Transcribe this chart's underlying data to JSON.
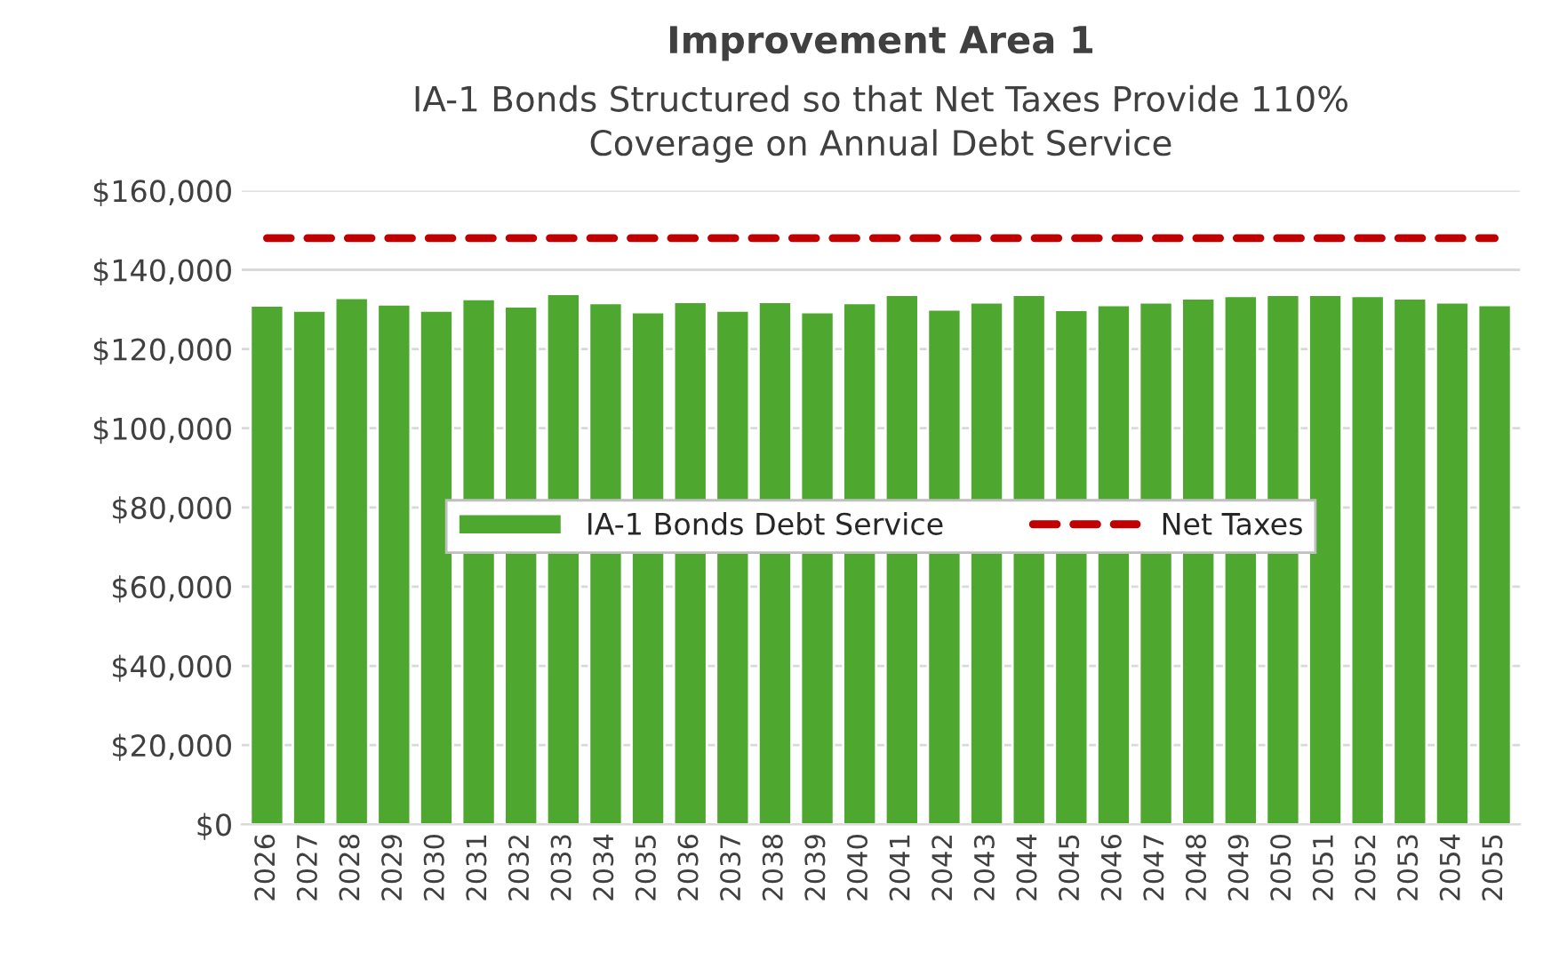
{
  "chart_data": {
    "type": "bar",
    "title": "Improvement Area 1",
    "subtitle": "IA-1 Bonds Structured so that Net Taxes Provide 110%\nCoverage on Annual Debt Service",
    "categories": [
      "2026",
      "2027",
      "2028",
      "2029",
      "2030",
      "2031",
      "2032",
      "2033",
      "2034",
      "2035",
      "2036",
      "2037",
      "2038",
      "2039",
      "2040",
      "2041",
      "2042",
      "2043",
      "2044",
      "2045",
      "2046",
      "2047",
      "2048",
      "2049",
      "2050",
      "2051",
      "2052",
      "2053",
      "2054",
      "2055"
    ],
    "series": [
      {
        "name": "IA-1 Bonds Debt Service",
        "color": "#4ea72e",
        "values": [
          131000,
          129700,
          132900,
          131300,
          129700,
          132600,
          130800,
          133900,
          131600,
          129300,
          131900,
          129700,
          131900,
          129300,
          131600,
          133700,
          130000,
          131800,
          133700,
          129900,
          131100,
          131800,
          132800,
          133400,
          133700,
          133700,
          133400,
          132800,
          131800,
          131100
        ]
      },
      {
        "name": "Net Taxes",
        "type": "line",
        "line_style": "dashed",
        "color": "#c00000",
        "values": [
          148000,
          148000,
          148000,
          148000,
          148000,
          148000,
          148000,
          148000,
          148000,
          148000,
          148000,
          148000,
          148000,
          148000,
          148000,
          148000,
          148000,
          148000,
          148000,
          148000,
          148000,
          148000,
          148000,
          148000,
          148000,
          148000,
          148000,
          148000,
          148000,
          148000
        ]
      }
    ],
    "ylim": [
      0,
      160000
    ],
    "yticks": [
      {
        "value": 0,
        "label": "$0"
      },
      {
        "value": 20000,
        "label": "$20,000"
      },
      {
        "value": 40000,
        "label": "$40,000"
      },
      {
        "value": 60000,
        "label": "$60,000"
      },
      {
        "value": 80000,
        "label": "$80,000"
      },
      {
        "value": 100000,
        "label": "$100,000"
      },
      {
        "value": 120000,
        "label": "$120,000"
      },
      {
        "value": 140000,
        "label": "$140,000"
      },
      {
        "value": 160000,
        "label": "$160,000"
      }
    ],
    "grid": "y",
    "legend": "center"
  }
}
